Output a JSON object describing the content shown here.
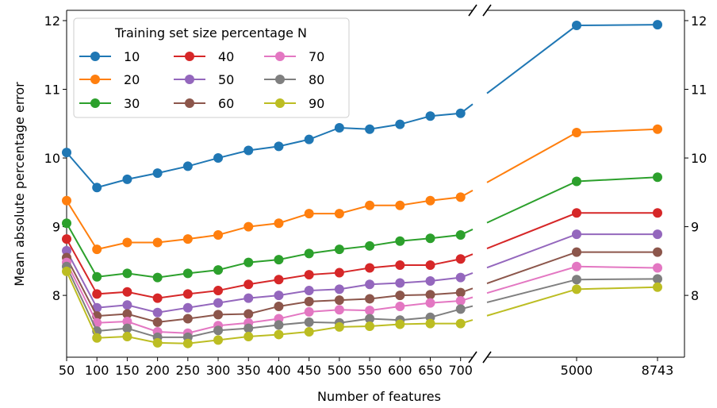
{
  "chart_data": {
    "type": "line",
    "xlabel": "Number of features",
    "ylabel": "Mean absolute percentage error",
    "legend": {
      "title": "Training set size percentage N",
      "placement": "top-left",
      "columns": 3
    },
    "x_left": [
      50,
      100,
      150,
      200,
      250,
      300,
      350,
      400,
      450,
      500,
      550,
      600,
      650,
      700
    ],
    "x_right": [
      5000,
      8743
    ],
    "x_right_tick_labels": [
      "5000",
      "8743"
    ],
    "xlim_left": [
      50,
      720
    ],
    "xlim_right_ticks": [
      5000,
      8743
    ],
    "y_ticks": [
      8,
      9,
      10,
      11,
      12
    ],
    "ylim": [
      7.1,
      12.15
    ],
    "grid": false,
    "broken_x_axis": true,
    "series": [
      {
        "name": "10",
        "color": "#1f77b4",
        "left": [
          10.08,
          9.57,
          9.69,
          9.78,
          9.88,
          10.0,
          10.11,
          10.17,
          10.27,
          10.44,
          10.42,
          10.49,
          10.61,
          10.65
        ],
        "right": [
          11.93,
          11.94
        ]
      },
      {
        "name": "20",
        "color": "#ff7f0e",
        "left": [
          9.38,
          8.67,
          8.77,
          8.77,
          8.82,
          8.88,
          9.0,
          9.05,
          9.19,
          9.19,
          9.31,
          9.31,
          9.38,
          9.43
        ],
        "right": [
          10.37,
          10.42
        ]
      },
      {
        "name": "30",
        "color": "#2ca02c",
        "left": [
          9.05,
          8.27,
          8.32,
          8.26,
          8.32,
          8.37,
          8.48,
          8.52,
          8.61,
          8.67,
          8.72,
          8.79,
          8.83,
          8.88
        ],
        "right": [
          9.66,
          9.72
        ]
      },
      {
        "name": "40",
        "color": "#d62728",
        "left": [
          8.82,
          8.02,
          8.05,
          7.96,
          8.02,
          8.07,
          8.16,
          8.23,
          8.3,
          8.33,
          8.4,
          8.44,
          8.44,
          8.53
        ],
        "right": [
          9.2,
          9.2
        ]
      },
      {
        "name": "50",
        "color": "#9467bd",
        "left": [
          8.65,
          7.82,
          7.86,
          7.75,
          7.82,
          7.89,
          7.96,
          8.0,
          8.07,
          8.09,
          8.16,
          8.18,
          8.21,
          8.26
        ],
        "right": [
          8.89,
          8.89
        ]
      },
      {
        "name": "60",
        "color": "#8c564b",
        "left": [
          8.55,
          7.7,
          7.73,
          7.61,
          7.66,
          7.72,
          7.73,
          7.84,
          7.91,
          7.93,
          7.95,
          8.0,
          8.01,
          8.04
        ],
        "right": [
          8.63,
          8.63
        ]
      },
      {
        "name": "70",
        "color": "#e377c2",
        "left": [
          8.48,
          7.6,
          7.62,
          7.47,
          7.45,
          7.56,
          7.6,
          7.66,
          7.76,
          7.79,
          7.78,
          7.84,
          7.89,
          7.92
        ],
        "right": [
          8.42,
          8.4
        ]
      },
      {
        "name": "80",
        "color": "#7f7f7f",
        "left": [
          8.42,
          7.48,
          7.52,
          7.39,
          7.39,
          7.49,
          7.52,
          7.57,
          7.61,
          7.6,
          7.66,
          7.64,
          7.68,
          7.8
        ],
        "right": [
          8.23,
          8.24
        ]
      },
      {
        "name": "90",
        "color": "#bcbd22",
        "left": [
          8.35,
          7.38,
          7.4,
          7.31,
          7.3,
          7.35,
          7.4,
          7.43,
          7.47,
          7.54,
          7.55,
          7.58,
          7.59,
          7.59
        ],
        "right": [
          8.09,
          8.12
        ]
      }
    ]
  }
}
